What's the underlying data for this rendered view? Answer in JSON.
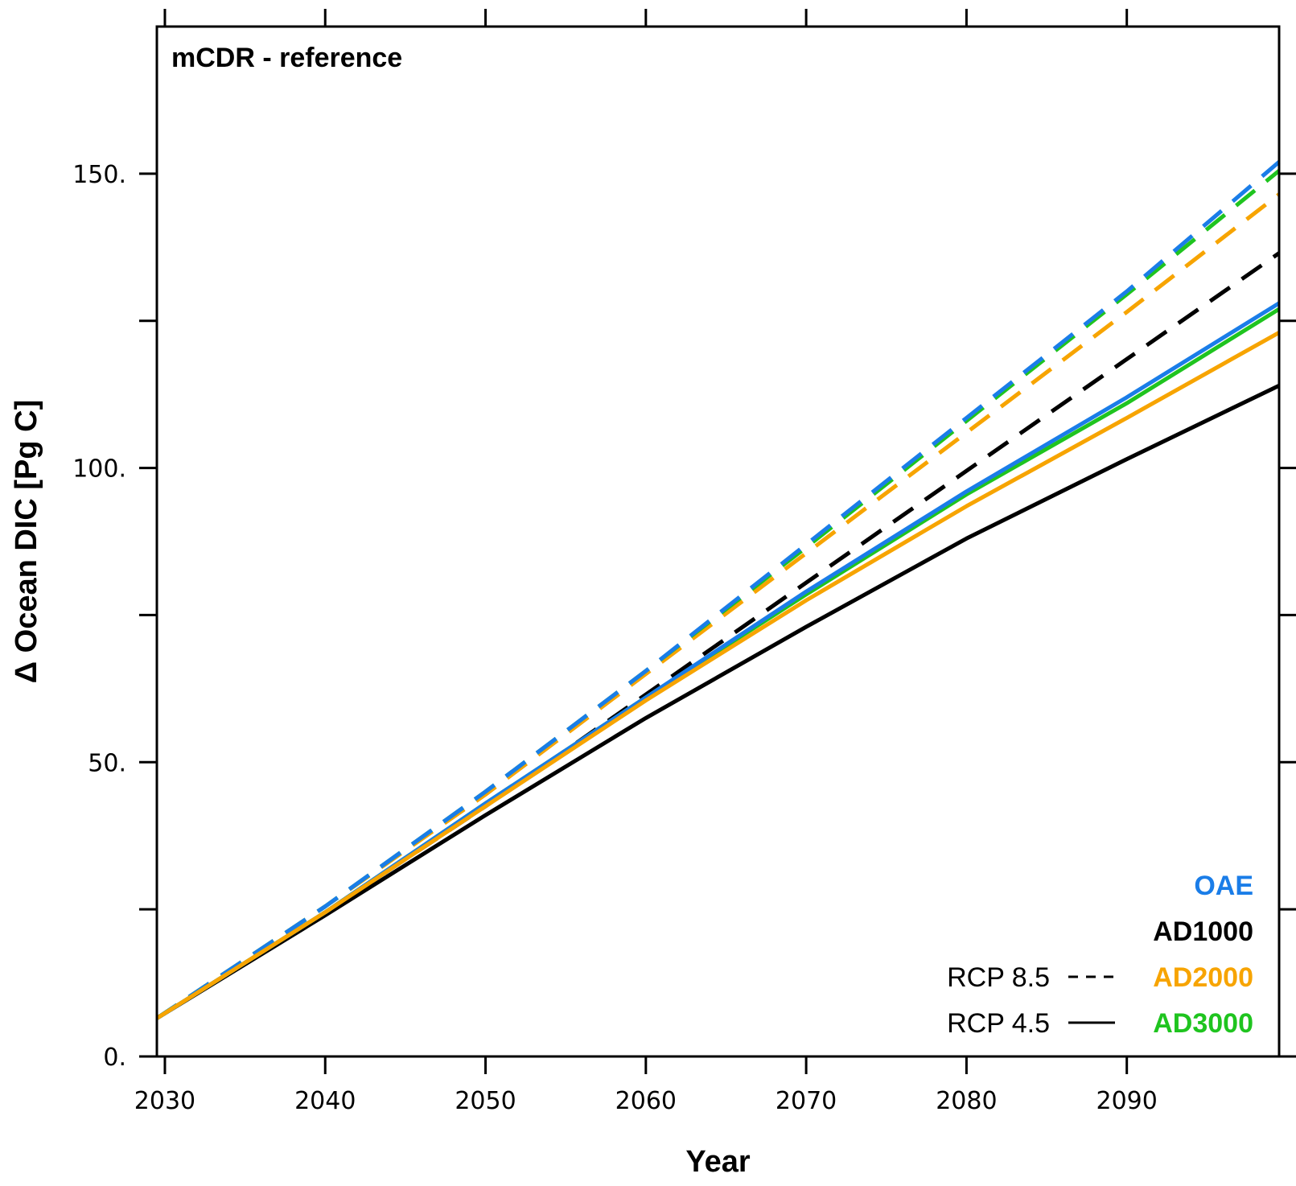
{
  "chart_data": {
    "type": "line",
    "title": "mCDR - reference",
    "xlabel": "Year",
    "ylabel": "Δ Ocean DIC [Pg C]",
    "xlim": [
      2029.5,
      2099.5
    ],
    "ylim": [
      0,
      175
    ],
    "xticks": [
      2030,
      2040,
      2050,
      2060,
      2070,
      2080,
      2090
    ],
    "xtick_labels": [
      "2030",
      "2040",
      "2050",
      "2060",
      "2070",
      "2080",
      "2090"
    ],
    "yticks": [
      0,
      25,
      50,
      75,
      100,
      125,
      150
    ],
    "ytick_labels": [
      "0.",
      "",
      "50.",
      "",
      "100.",
      "",
      "150."
    ],
    "grid": false,
    "legend_position": "bottom-right",
    "legend": {
      "methods": [
        {
          "label": "OAE",
          "color": "#1a7de8"
        },
        {
          "label": "AD1000",
          "color": "#000000"
        },
        {
          "label": "AD2000",
          "color": "#f7a400"
        },
        {
          "label": "AD3000",
          "color": "#1fc41f"
        }
      ],
      "scenarios": [
        {
          "label": "RCP 8.5",
          "style": "dashed"
        },
        {
          "label": "RCP 4.5",
          "style": "solid"
        }
      ]
    },
    "x": [
      2029.5,
      2040,
      2050,
      2060,
      2070,
      2080,
      2090,
      2099.5
    ],
    "series": [
      {
        "method": "AD1000",
        "scenario": "RCP 8.5",
        "color": "#000000",
        "style": "dashed",
        "values": [
          6.5,
          24.5,
          42.5,
          61.5,
          80.5,
          99.5,
          118.5,
          136.5
        ]
      },
      {
        "method": "AD2000",
        "scenario": "RCP 8.5",
        "color": "#f7a400",
        "style": "dashed",
        "values": [
          6.5,
          25.5,
          44.5,
          65.0,
          85.5,
          106.0,
          126.5,
          146.5
        ]
      },
      {
        "method": "AD3000",
        "scenario": "RCP 8.5",
        "color": "#1fc41f",
        "style": "dashed",
        "values": [
          6.5,
          25.5,
          45.0,
          65.5,
          86.5,
          108.0,
          129.5,
          150.5
        ]
      },
      {
        "method": "OAE",
        "scenario": "RCP 8.5",
        "color": "#1a7de8",
        "style": "dashed",
        "values": [
          6.5,
          25.5,
          45.0,
          65.5,
          87.0,
          108.5,
          130.0,
          152.0
        ]
      },
      {
        "method": "AD1000",
        "scenario": "RCP 4.5",
        "color": "#000000",
        "style": "solid",
        "values": [
          6.5,
          24.0,
          41.0,
          57.5,
          73.0,
          88.0,
          101.5,
          114.0
        ]
      },
      {
        "method": "AD3000",
        "scenario": "RCP 4.5",
        "color": "#1fc41f",
        "style": "solid",
        "values": [
          6.5,
          24.5,
          43.0,
          61.0,
          78.5,
          95.5,
          111.0,
          127.0
        ]
      },
      {
        "method": "OAE",
        "scenario": "RCP 4.5",
        "color": "#1a7de8",
        "style": "solid",
        "values": [
          6.5,
          24.5,
          43.0,
          61.0,
          79.0,
          96.0,
          112.0,
          128.0
        ]
      },
      {
        "method": "AD2000",
        "scenario": "RCP 4.5",
        "color": "#f7a400",
        "style": "solid",
        "values": [
          6.5,
          24.5,
          42.5,
          60.5,
          77.5,
          93.5,
          108.5,
          123.0
        ]
      }
    ]
  }
}
